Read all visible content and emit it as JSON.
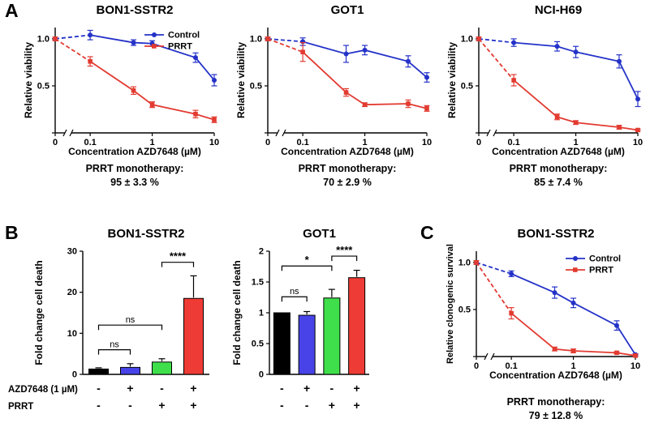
{
  "panels": {
    "a": "A",
    "b": "B",
    "c": "C"
  },
  "chart_data": [
    {
      "id": "bon1-sstr2-viability",
      "panel": "A",
      "type": "line",
      "title": "BON1-SSTR2",
      "xlabel": "Concentration AZD7648 (µM)",
      "ylabel": "Relative viability",
      "x_scale": "log with axis break at 0",
      "ylim": [
        0,
        1.12
      ],
      "x_ticks": [
        {
          "v": 0,
          "label": "0"
        },
        {
          "v": 0.1,
          "label": "0.1"
        },
        {
          "v": 1,
          "label": "1"
        },
        {
          "v": 10,
          "label": "10"
        }
      ],
      "y_ticks": [
        {
          "v": 0,
          "label": ""
        },
        {
          "v": 0.5,
          "label": "0.5"
        },
        {
          "v": 1,
          "label": "1.0"
        }
      ],
      "legend": true,
      "series": [
        {
          "name": "Control",
          "color": "#2432c8",
          "marker": "circle",
          "x": [
            0,
            0.1,
            0.5,
            1,
            5,
            10
          ],
          "y": [
            1.0,
            1.04,
            0.96,
            0.95,
            0.8,
            0.56
          ],
          "err": [
            0.02,
            0.05,
            0.03,
            0.03,
            0.05,
            0.06
          ]
        },
        {
          "name": "PRRT",
          "color": "#e23b31",
          "marker": "square",
          "x": [
            0,
            0.1,
            0.5,
            1,
            5,
            10
          ],
          "y": [
            1.0,
            0.76,
            0.45,
            0.3,
            0.2,
            0.14
          ],
          "err": [
            0.02,
            0.05,
            0.04,
            0.03,
            0.04,
            0.03
          ]
        }
      ],
      "footnote_label": "PRRT monotherapy:",
      "footnote_value": "95 ± 3.3 %"
    },
    {
      "id": "got1-viability",
      "panel": "A",
      "type": "line",
      "title": "GOT1",
      "xlabel": "Concentration AZD7648 (µM)",
      "ylabel": "Relative viability",
      "x_scale": "log with axis break at 0",
      "ylim": [
        0,
        1.12
      ],
      "x_ticks": [
        {
          "v": 0,
          "label": "0"
        },
        {
          "v": 0.1,
          "label": "0.1"
        },
        {
          "v": 1,
          "label": "1"
        },
        {
          "v": 10,
          "label": "10"
        }
      ],
      "y_ticks": [
        {
          "v": 0,
          "label": ""
        },
        {
          "v": 0.5,
          "label": "0.5"
        },
        {
          "v": 1,
          "label": "1.0"
        }
      ],
      "legend": false,
      "series": [
        {
          "name": "Control",
          "color": "#2432c8",
          "marker": "circle",
          "x": [
            0,
            0.1,
            0.5,
            1,
            5,
            10
          ],
          "y": [
            1.0,
            0.97,
            0.84,
            0.88,
            0.76,
            0.59
          ],
          "err": [
            0.02,
            0.04,
            0.09,
            0.05,
            0.06,
            0.05
          ]
        },
        {
          "name": "PRRT",
          "color": "#e23b31",
          "marker": "square",
          "x": [
            0,
            0.1,
            0.5,
            1,
            5,
            10
          ],
          "y": [
            1.0,
            0.86,
            0.43,
            0.3,
            0.31,
            0.26
          ],
          "err": [
            0.02,
            0.1,
            0.04,
            0.02,
            0.04,
            0.03
          ]
        }
      ],
      "footnote_label": "PRRT monotherapy:",
      "footnote_value": "70 ± 2.9 %"
    },
    {
      "id": "nci-h69-viability",
      "panel": "A",
      "type": "line",
      "title": "NCI-H69",
      "xlabel": "Concentration AZD7648 (µM)",
      "ylabel": "Relative viability",
      "x_scale": "log with axis break at 0",
      "ylim": [
        0,
        1.12
      ],
      "x_ticks": [
        {
          "v": 0,
          "label": "0"
        },
        {
          "v": 0.1,
          "label": "0.1"
        },
        {
          "v": 1,
          "label": "1"
        },
        {
          "v": 10,
          "label": "10"
        }
      ],
      "y_ticks": [
        {
          "v": 0,
          "label": ""
        },
        {
          "v": 0.5,
          "label": "0.5"
        },
        {
          "v": 1,
          "label": "1.0"
        }
      ],
      "legend": false,
      "series": [
        {
          "name": "Control",
          "color": "#2432c8",
          "marker": "circle",
          "x": [
            0,
            0.1,
            0.5,
            1,
            5,
            10
          ],
          "y": [
            1.0,
            0.96,
            0.92,
            0.86,
            0.76,
            0.36
          ],
          "err": [
            0.02,
            0.04,
            0.05,
            0.06,
            0.07,
            0.08
          ]
        },
        {
          "name": "PRRT",
          "color": "#e23b31",
          "marker": "square",
          "x": [
            0,
            0.1,
            0.5,
            1,
            5,
            10
          ],
          "y": [
            1.0,
            0.56,
            0.17,
            0.11,
            0.06,
            0.03
          ],
          "err": [
            0.02,
            0.06,
            0.03,
            0.02,
            0.02,
            0.01
          ]
        }
      ],
      "footnote_label": "PRRT monotherapy:",
      "footnote_value": "85 ± 7.4 %"
    },
    {
      "id": "bon1-sstr2-cell-death",
      "panel": "B",
      "type": "bar",
      "title": "BON1-SSTR2",
      "ylabel": "Fold change cell death",
      "ylim": [
        0,
        30
      ],
      "y_ticks": [
        {
          "v": 0,
          "label": "0"
        },
        {
          "v": 10,
          "label": "10"
        },
        {
          "v": 20,
          "label": "20"
        },
        {
          "v": 30,
          "label": "30"
        }
      ],
      "values": [
        1.3,
        1.7,
        3.0,
        18.5
      ],
      "errors": [
        0.3,
        0.9,
        0.8,
        5.5
      ],
      "colors": [
        "#000000",
        "#4743e8",
        "#3fdf4b",
        "#ef3b35"
      ],
      "significance": [
        {
          "a": 0,
          "b": 1,
          "label": "ns",
          "h": 0.2
        },
        {
          "a": 0,
          "b": 2,
          "label": "ns",
          "h": 0.4
        },
        {
          "a": 2,
          "b": 3,
          "label": "****",
          "h": 0.91
        }
      ],
      "condition_rows": [
        {
          "label": "AZD7648 (1 µM)",
          "signs": [
            "-",
            "+",
            "-",
            "+"
          ]
        },
        {
          "label": "PRRT",
          "signs": [
            "-",
            "-",
            "+",
            "+"
          ]
        }
      ]
    },
    {
      "id": "got1-cell-death",
      "panel": "B",
      "type": "bar",
      "title": "GOT1",
      "ylabel": "Fold change cell death",
      "ylim": [
        0,
        2
      ],
      "y_ticks": [
        {
          "v": 0,
          "label": "0"
        },
        {
          "v": 0.5,
          "label": "0.5"
        },
        {
          "v": 1,
          "label": "1"
        },
        {
          "v": 1.5,
          "label": "1.5"
        },
        {
          "v": 2,
          "label": "2"
        }
      ],
      "values": [
        1.0,
        0.96,
        1.24,
        1.57
      ],
      "errors": [
        0,
        0.06,
        0.14,
        0.12
      ],
      "colors": [
        "#000000",
        "#4743e8",
        "#3fdf4b",
        "#ef3b35"
      ],
      "significance": [
        {
          "a": 0,
          "b": 1,
          "label": "ns",
          "h": 0.63
        },
        {
          "a": 0,
          "b": 2,
          "label": "*",
          "h": 0.88
        },
        {
          "a": 2,
          "b": 3,
          "label": "****",
          "h": 0.96
        }
      ],
      "condition_rows": [
        {
          "label": "",
          "signs": [
            "-",
            "+",
            "-",
            "+"
          ]
        },
        {
          "label": "",
          "signs": [
            "-",
            "-",
            "+",
            "+"
          ]
        }
      ]
    },
    {
      "id": "bon1-sstr2-clonogenic",
      "panel": "C",
      "type": "line",
      "title": "BON1-SSTR2",
      "xlabel": "Concentration AZD7648 (µM)",
      "ylabel": "Relative clonogenic survival",
      "x_scale": "log with axis break at 0",
      "ylim": [
        0,
        1.12
      ],
      "x_ticks": [
        {
          "v": 0,
          "label": "0"
        },
        {
          "v": 0.1,
          "label": "0.1"
        },
        {
          "v": 1,
          "label": "1"
        },
        {
          "v": 10,
          "label": "10"
        }
      ],
      "y_ticks": [
        {
          "v": 0,
          "label": ""
        },
        {
          "v": 0.5,
          "label": "0.5"
        },
        {
          "v": 1,
          "label": "1.0"
        }
      ],
      "legend": true,
      "series": [
        {
          "name": "Control",
          "color": "#2432c8",
          "marker": "circle",
          "x": [
            0,
            0.1,
            0.5,
            1,
            5,
            10
          ],
          "y": [
            1.0,
            0.88,
            0.68,
            0.57,
            0.33,
            0.02
          ],
          "err": [
            0.02,
            0.03,
            0.06,
            0.05,
            0.05,
            0.01
          ]
        },
        {
          "name": "PRRT",
          "color": "#e23b31",
          "marker": "square",
          "x": [
            0,
            0.1,
            0.5,
            1,
            5,
            10
          ],
          "y": [
            1.0,
            0.46,
            0.08,
            0.06,
            0.04,
            0.01
          ],
          "err": [
            0.02,
            0.06,
            0.02,
            0.02,
            0.01,
            0.01
          ]
        }
      ],
      "footnote_label": "PRRT monotherapy:",
      "footnote_value": "79 ± 12.8 %"
    }
  ]
}
